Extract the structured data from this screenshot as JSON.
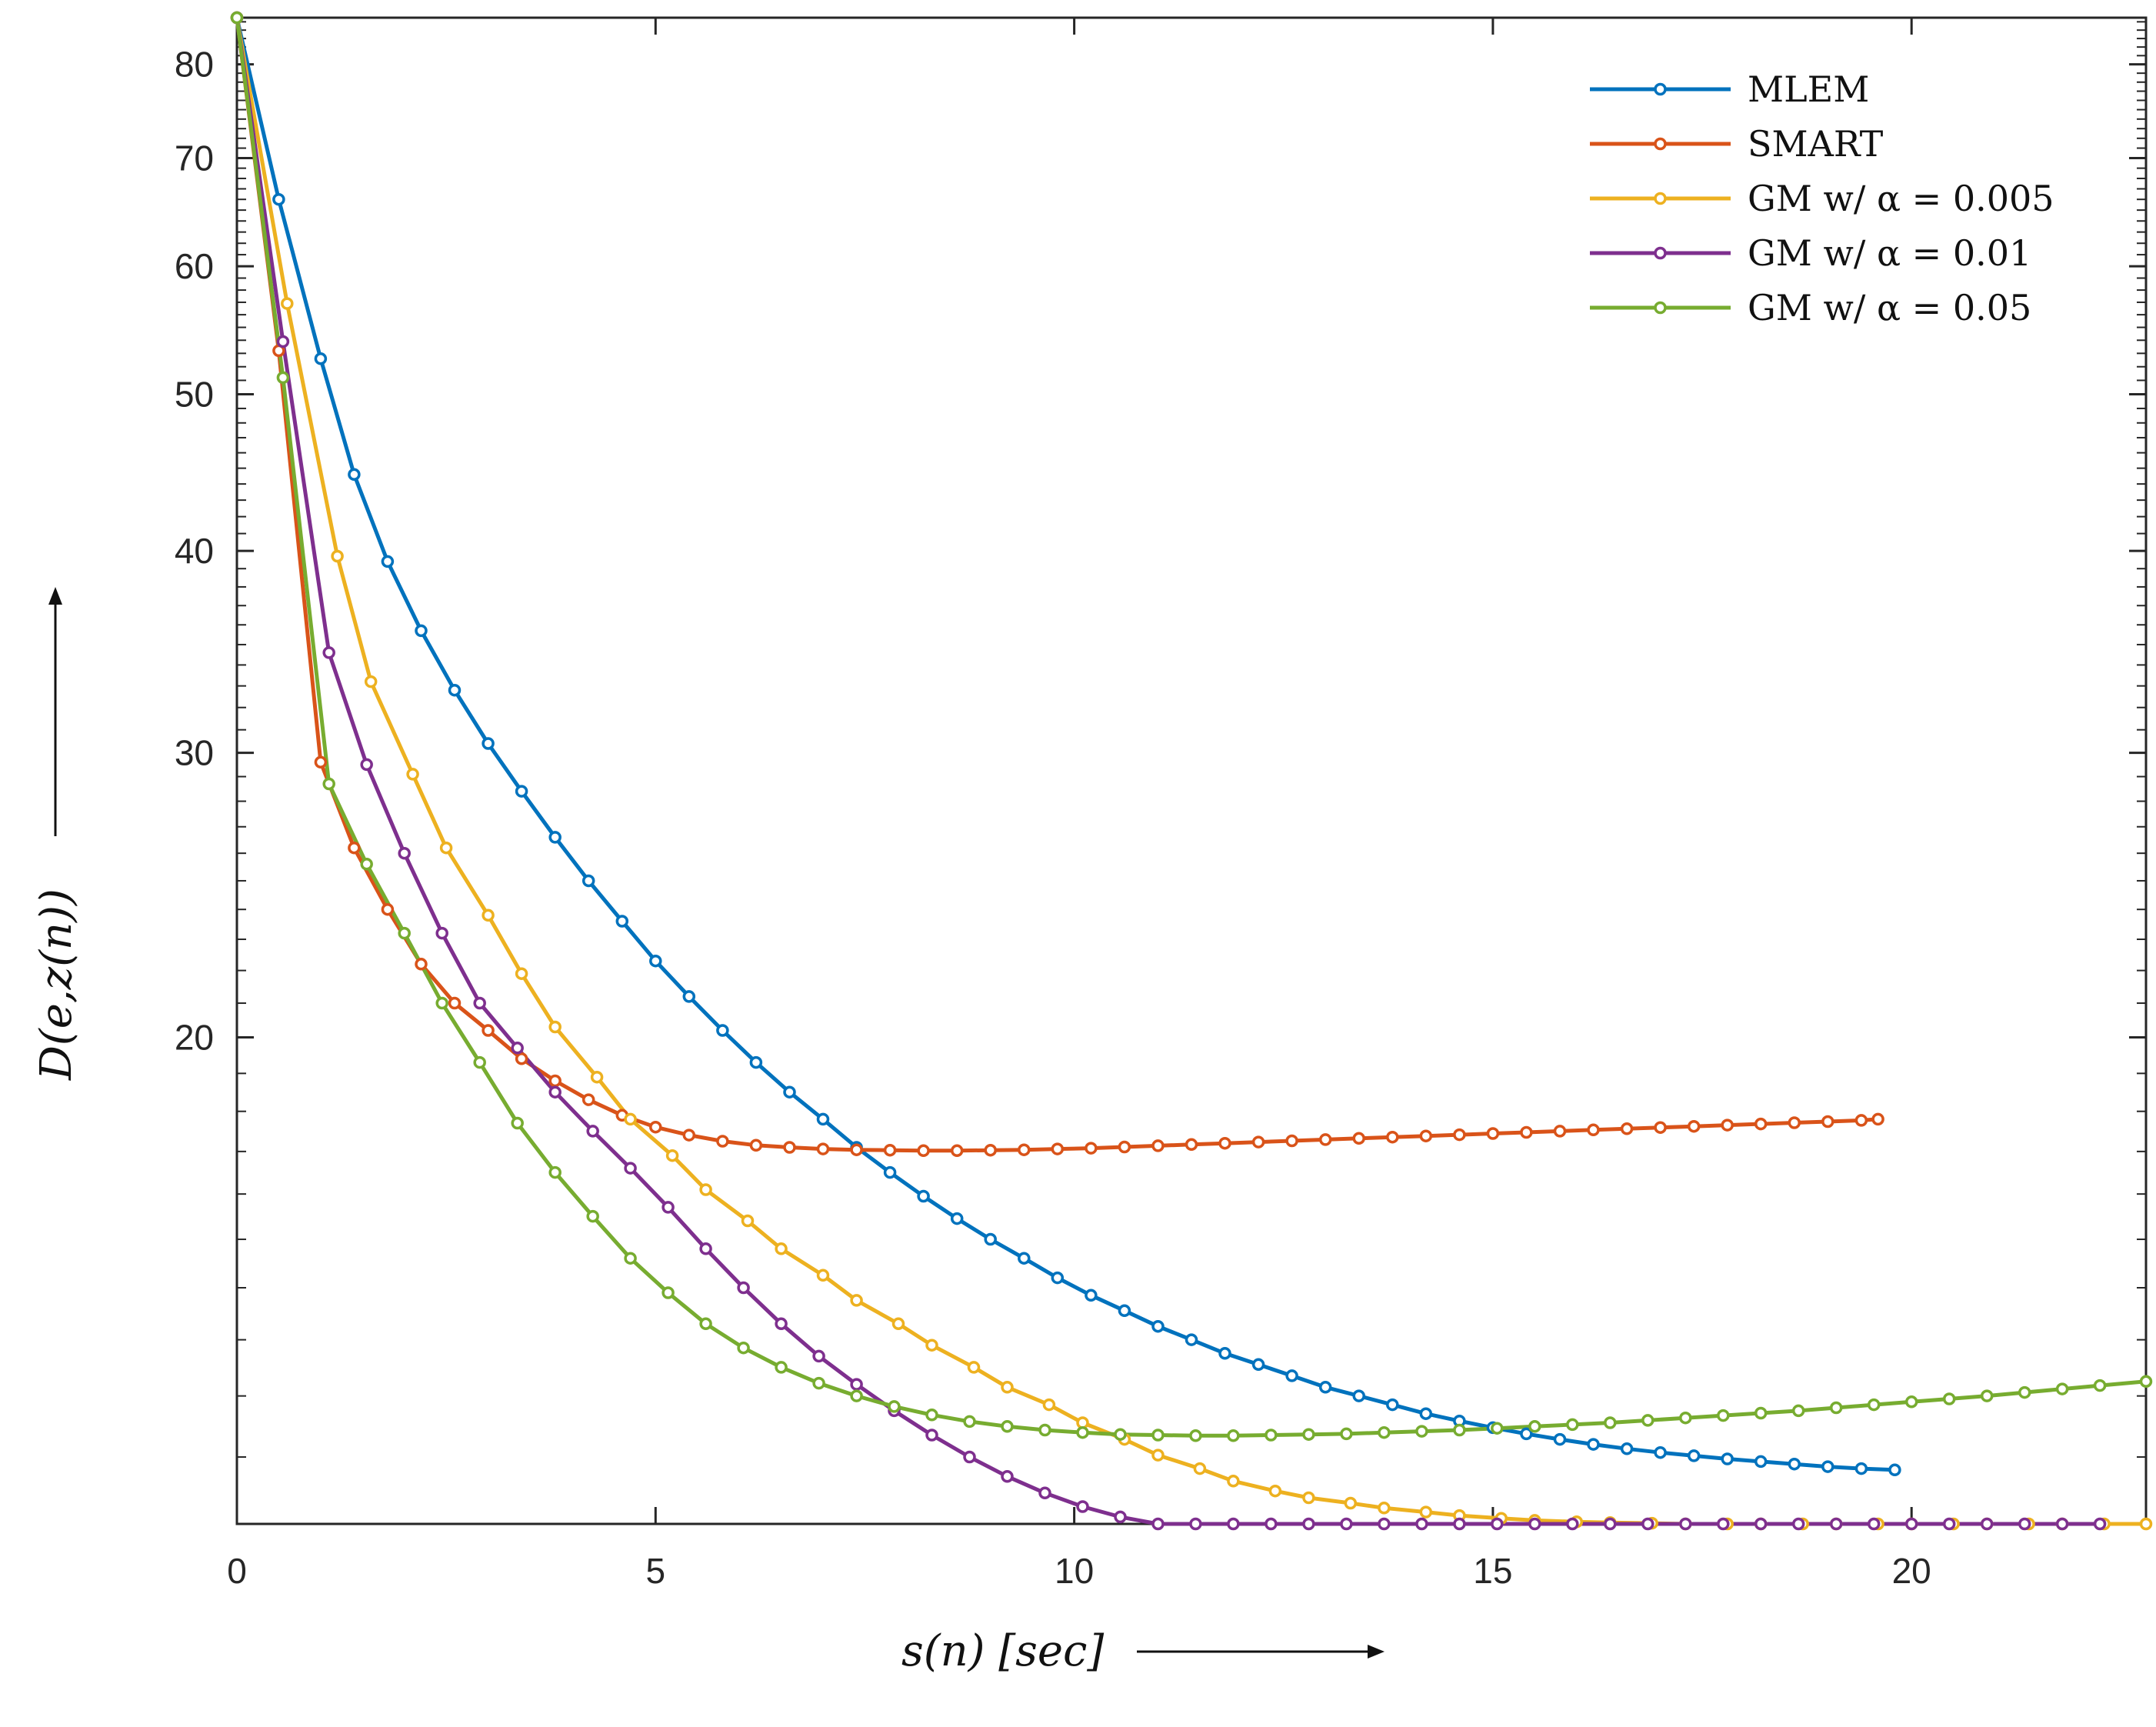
{
  "chart_data": {
    "type": "line",
    "title": "",
    "xlabel": "s(n) [sec]",
    "ylabel": "D(e,z(n))",
    "xscale": "linear",
    "yscale": "log",
    "xlim": [
      0,
      22.8
    ],
    "ylim": [
      10.0,
      85.5
    ],
    "xticks": [
      0,
      5,
      10,
      15,
      20
    ],
    "xtick_labels": [
      "0",
      "5",
      "10",
      "15",
      "20"
    ],
    "yticks": [
      20,
      30,
      40,
      50,
      60,
      70,
      80
    ],
    "ytick_labels": [
      "20",
      "30",
      "40",
      "50",
      "60",
      "70",
      "80"
    ],
    "yminor_ticks": [
      11,
      12,
      13,
      14,
      15,
      16,
      17,
      18,
      19,
      21,
      22,
      23,
      24,
      25,
      26,
      27,
      28,
      29,
      31,
      32,
      33,
      34,
      35,
      36,
      37,
      38,
      39,
      41,
      42,
      43,
      44,
      45,
      46,
      47,
      48,
      49,
      51,
      52,
      53,
      54,
      55,
      56,
      57,
      58,
      59,
      61,
      62,
      63,
      64,
      65,
      66,
      67,
      68,
      69,
      71,
      72,
      73,
      74,
      75,
      76,
      77,
      78,
      79,
      81,
      82,
      83,
      84,
      85
    ],
    "grid": false,
    "legend_position": "top-right",
    "series": [
      {
        "name": "MLEM",
        "color": "#0072BD",
        "x": [
          0.0,
          0.5,
          1.0,
          1.4,
          1.8,
          2.2,
          2.6,
          3.0,
          3.4,
          3.8,
          4.2,
          4.6,
          5.0,
          5.4,
          5.8,
          6.2,
          6.6,
          7.0,
          7.4,
          7.8,
          8.2,
          8.6,
          9.0,
          9.4,
          9.8,
          10.2,
          10.6,
          11.0,
          11.4,
          11.8,
          12.2,
          12.6,
          13.0,
          13.4,
          13.8,
          14.2,
          14.6,
          15.0,
          15.4,
          15.8,
          16.2,
          16.6,
          17.0,
          17.4,
          17.8,
          18.2,
          18.6,
          19.0,
          19.4,
          19.8
        ],
        "y": [
          85.5,
          66.0,
          52.6,
          44.6,
          39.4,
          35.7,
          32.8,
          30.4,
          28.4,
          26.6,
          25.0,
          23.6,
          22.3,
          21.2,
          20.2,
          19.3,
          18.5,
          17.8,
          17.1,
          16.5,
          15.95,
          15.45,
          15.0,
          14.6,
          14.2,
          13.85,
          13.55,
          13.25,
          13.0,
          12.75,
          12.55,
          12.35,
          12.15,
          12.0,
          11.85,
          11.7,
          11.58,
          11.47,
          11.37,
          11.28,
          11.2,
          11.13,
          11.07,
          11.02,
          10.97,
          10.93,
          10.89,
          10.85,
          10.82,
          10.8
        ]
      },
      {
        "name": "SMART",
        "color": "#D95319",
        "x": [
          0.0,
          0.5,
          1.0,
          1.4,
          1.8,
          2.2,
          2.6,
          3.0,
          3.4,
          3.8,
          4.2,
          4.6,
          5.0,
          5.4,
          5.8,
          6.2,
          6.6,
          7.0,
          7.4,
          7.8,
          8.2,
          8.6,
          9.0,
          9.4,
          9.8,
          10.2,
          10.6,
          11.0,
          11.4,
          11.8,
          12.2,
          12.6,
          13.0,
          13.4,
          13.8,
          14.2,
          14.6,
          15.0,
          15.4,
          15.8,
          16.2,
          16.6,
          17.0,
          17.4,
          17.8,
          18.2,
          18.6,
          19.0,
          19.4,
          19.6
        ],
        "y": [
          85.5,
          53.2,
          29.6,
          26.2,
          24.0,
          22.2,
          21.0,
          20.2,
          19.4,
          18.8,
          18.3,
          17.9,
          17.6,
          17.4,
          17.25,
          17.15,
          17.1,
          17.06,
          17.04,
          17.03,
          17.02,
          17.02,
          17.03,
          17.04,
          17.06,
          17.08,
          17.11,
          17.14,
          17.17,
          17.2,
          17.23,
          17.26,
          17.29,
          17.32,
          17.35,
          17.38,
          17.41,
          17.44,
          17.47,
          17.5,
          17.53,
          17.56,
          17.59,
          17.62,
          17.65,
          17.68,
          17.71,
          17.74,
          17.77,
          17.8
        ]
      },
      {
        "name": "GM w/ α = 0.005",
        "color": "#EDB120",
        "x": [
          0.0,
          0.6,
          1.2,
          1.6,
          2.1,
          2.5,
          3.0,
          3.4,
          3.8,
          4.3,
          4.7,
          5.2,
          5.6,
          6.1,
          6.5,
          7.0,
          7.4,
          7.9,
          8.3,
          8.8,
          9.2,
          9.7,
          10.1,
          10.6,
          11.0,
          11.5,
          11.9,
          12.4,
          12.8,
          13.3,
          13.7,
          14.2,
          14.6,
          15.1,
          15.5,
          16.0,
          16.4,
          16.9,
          17.3,
          17.8,
          18.2,
          18.7,
          19.1,
          19.6,
          20.0,
          20.5,
          20.9,
          21.4,
          21.8,
          22.3,
          22.8
        ],
        "y": [
          85.5,
          56.9,
          39.7,
          33.2,
          29.1,
          26.2,
          23.8,
          21.9,
          20.3,
          18.9,
          17.8,
          16.9,
          16.1,
          15.4,
          14.8,
          14.25,
          13.75,
          13.3,
          12.9,
          12.5,
          12.15,
          11.85,
          11.55,
          11.28,
          11.03,
          10.82,
          10.63,
          10.48,
          10.38,
          10.3,
          10.23,
          10.17,
          10.12,
          10.08,
          10.05,
          10.03,
          10.02,
          10.01,
          10.0,
          10.0,
          10.0,
          10.0,
          10.0,
          10.0,
          10.0,
          10.0,
          10.0,
          10.0,
          10.0,
          10.0,
          10.0
        ]
      },
      {
        "name": "GM w/ α = 0.01",
        "color": "#7E2F8E",
        "x": [
          0.0,
          0.55,
          1.1,
          1.55,
          2.0,
          2.45,
          2.9,
          3.35,
          3.8,
          4.25,
          4.7,
          5.15,
          5.6,
          6.05,
          6.5,
          6.95,
          7.4,
          7.85,
          8.3,
          8.75,
          9.2,
          9.65,
          10.1,
          10.55,
          11.0,
          11.45,
          11.9,
          12.35,
          12.8,
          13.25,
          13.7,
          14.15,
          14.6,
          15.05,
          15.5,
          15.95,
          16.4,
          16.85,
          17.3,
          17.75,
          18.2,
          18.65,
          19.1,
          19.55,
          20.0,
          20.45,
          20.9,
          21.35,
          21.8,
          22.25
        ],
        "y": [
          85.5,
          53.9,
          34.6,
          29.5,
          26.0,
          23.2,
          21.0,
          19.7,
          18.5,
          17.5,
          16.6,
          15.7,
          14.8,
          14.0,
          13.3,
          12.7,
          12.2,
          11.75,
          11.35,
          11.0,
          10.7,
          10.45,
          10.25,
          10.1,
          9.98,
          9.88,
          9.8,
          9.74,
          9.69,
          9.65,
          9.62,
          9.6,
          9.58,
          9.57,
          9.56,
          9.55,
          9.55,
          9.55,
          9.55,
          9.55,
          9.55,
          9.55,
          9.56,
          9.57,
          9.58,
          9.59,
          9.6,
          9.61,
          9.62,
          9.63
        ]
      },
      {
        "name": "GM w/ α = 0.05",
        "color": "#77AC30",
        "x": [
          0.0,
          0.55,
          1.1,
          1.55,
          2.0,
          2.45,
          2.9,
          3.35,
          3.8,
          4.25,
          4.7,
          5.15,
          5.6,
          6.05,
          6.5,
          6.95,
          7.4,
          7.85,
          8.3,
          8.75,
          9.2,
          9.65,
          10.1,
          10.55,
          11.0,
          11.45,
          11.9,
          12.35,
          12.8,
          13.25,
          13.7,
          14.15,
          14.6,
          15.05,
          15.5,
          15.95,
          16.4,
          16.85,
          17.3,
          17.75,
          18.2,
          18.65,
          19.1,
          19.55,
          20.0,
          20.45,
          20.9,
          21.35,
          21.8,
          22.25,
          22.8
        ],
        "y": [
          85.5,
          51.2,
          28.7,
          25.6,
          23.2,
          21.0,
          19.3,
          17.7,
          16.5,
          15.5,
          14.6,
          13.9,
          13.3,
          12.85,
          12.5,
          12.22,
          12.0,
          11.82,
          11.68,
          11.57,
          11.49,
          11.43,
          11.39,
          11.36,
          11.35,
          11.34,
          11.34,
          11.35,
          11.36,
          11.37,
          11.39,
          11.41,
          11.43,
          11.46,
          11.49,
          11.52,
          11.55,
          11.59,
          11.63,
          11.67,
          11.71,
          11.75,
          11.8,
          11.85,
          11.9,
          11.95,
          12.0,
          12.06,
          12.12,
          12.18,
          12.25
        ]
      }
    ]
  }
}
